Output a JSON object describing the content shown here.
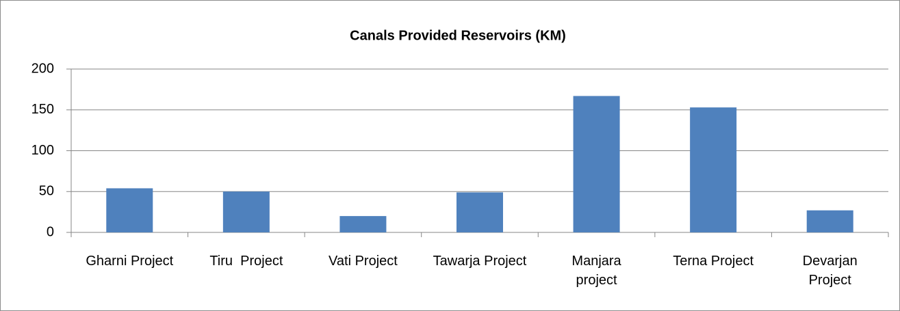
{
  "chart_data": {
    "type": "bar",
    "title": "Canals Provided Reservoirs (KM)",
    "categories": [
      "Gharni Project",
      "Tiru  Project",
      "Vati Project",
      "Tawarja Project",
      "Manjara\nproject",
      "Terna Project",
      "Devarjan\nProject"
    ],
    "values": [
      54,
      50,
      20,
      49,
      167,
      153,
      27
    ],
    "color": "#4f81bd",
    "ylim": [
      0,
      200
    ],
    "yticks": [
      0,
      50,
      100,
      150,
      200
    ],
    "grid": true
  }
}
